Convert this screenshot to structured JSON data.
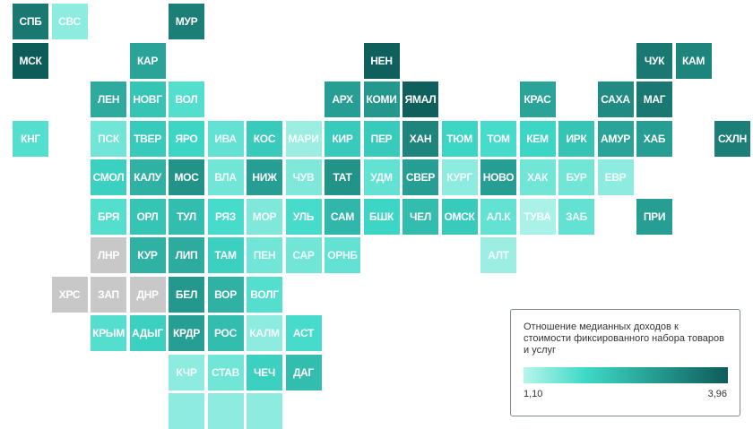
{
  "legend": {
    "title": "Отношение медианных доходов к стоимости фиксированного набора товаров и услуг",
    "min_label": "1,10",
    "max_label": "3,96",
    "min_value": 1.1,
    "max_value": 3.96,
    "color_low": "#b8f5ec",
    "color_mid": "#3ed9c7",
    "color_high": "#0e5c59",
    "no_data_color": "#c8c8c8"
  },
  "regions": [
    {
      "label": "СПБ",
      "col": 0,
      "row": 0,
      "value": 3.5
    },
    {
      "label": "СВС",
      "col": 1,
      "row": 0,
      "value": 1.4
    },
    {
      "label": "МУР",
      "col": 4,
      "row": 0,
      "value": 3.4
    },
    {
      "label": "МСК",
      "col": 0,
      "row": 1,
      "value": 3.96
    },
    {
      "label": "КАР",
      "col": 3,
      "row": 1,
      "value": 2.8
    },
    {
      "label": "НЕН",
      "col": 9,
      "row": 1,
      "value": 3.9
    },
    {
      "label": "ЧУК",
      "col": 16,
      "row": 1,
      "value": 3.5
    },
    {
      "label": "КАМ",
      "col": 17,
      "row": 1,
      "value": 3.3
    },
    {
      "label": "ЛЕН",
      "col": 2,
      "row": 2,
      "value": 2.7
    },
    {
      "label": "НОВГ",
      "col": 3,
      "row": 2,
      "value": 2.3
    },
    {
      "label": "ВОЛ",
      "col": 4,
      "row": 2,
      "value": 1.8
    },
    {
      "label": "АРХ",
      "col": 8,
      "row": 2,
      "value": 2.9
    },
    {
      "label": "КОМИ",
      "col": 9,
      "row": 2,
      "value": 3.0
    },
    {
      "label": "ЯМАЛ",
      "col": 10,
      "row": 2,
      "value": 3.9
    },
    {
      "label": "КРАС",
      "col": 13,
      "row": 2,
      "value": 2.8
    },
    {
      "label": "САХА",
      "col": 15,
      "row": 2,
      "value": 3.2
    },
    {
      "label": "МАГ",
      "col": 16,
      "row": 2,
      "value": 3.5
    },
    {
      "label": "КНГ",
      "col": 0,
      "row": 3,
      "value": 1.8
    },
    {
      "label": "ПСК",
      "col": 2,
      "row": 3,
      "value": 1.6
    },
    {
      "label": "ТВЕР",
      "col": 3,
      "row": 3,
      "value": 2.2
    },
    {
      "label": "ЯРО",
      "col": 4,
      "row": 3,
      "value": 2.0
    },
    {
      "label": "ИВА",
      "col": 5,
      "row": 3,
      "value": 1.7
    },
    {
      "label": "КОС",
      "col": 6,
      "row": 3,
      "value": 2.2
    },
    {
      "label": "МАРИ",
      "col": 7,
      "row": 3,
      "value": 1.3
    },
    {
      "label": "КИР",
      "col": 8,
      "row": 3,
      "value": 2.2
    },
    {
      "label": "ПЕР",
      "col": 9,
      "row": 3,
      "value": 2.2
    },
    {
      "label": "ХАН",
      "col": 10,
      "row": 3,
      "value": 3.3
    },
    {
      "label": "ТЮМ",
      "col": 11,
      "row": 3,
      "value": 2.0
    },
    {
      "label": "ТОМ",
      "col": 12,
      "row": 3,
      "value": 1.9
    },
    {
      "label": "КЕМ",
      "col": 13,
      "row": 3,
      "value": 2.0
    },
    {
      "label": "ИРК",
      "col": 14,
      "row": 3,
      "value": 2.3
    },
    {
      "label": "АМУР",
      "col": 15,
      "row": 3,
      "value": 2.8
    },
    {
      "label": "ХАБ",
      "col": 16,
      "row": 3,
      "value": 2.9
    },
    {
      "label": "СХЛН",
      "col": 18,
      "row": 3,
      "value": 3.4
    },
    {
      "label": "СМОЛ",
      "col": 2,
      "row": 4,
      "value": 2.1
    },
    {
      "label": "КАЛУ",
      "col": 3,
      "row": 4,
      "value": 2.6
    },
    {
      "label": "МОС",
      "col": 4,
      "row": 4,
      "value": 3.1
    },
    {
      "label": "ВЛА",
      "col": 5,
      "row": 4,
      "value": 1.6
    },
    {
      "label": "НИЖ",
      "col": 6,
      "row": 4,
      "value": 2.9
    },
    {
      "label": "ЧУВ",
      "col": 7,
      "row": 4,
      "value": 1.5
    },
    {
      "label": "ТАТ",
      "col": 8,
      "row": 4,
      "value": 3.1
    },
    {
      "label": "УДМ",
      "col": 9,
      "row": 4,
      "value": 1.7
    },
    {
      "label": "СВЕР",
      "col": 10,
      "row": 4,
      "value": 2.9
    },
    {
      "label": "КУРГ",
      "col": 11,
      "row": 4,
      "value": 1.4
    },
    {
      "label": "НОВО",
      "col": 12,
      "row": 4,
      "value": 2.9
    },
    {
      "label": "ХАК",
      "col": 13,
      "row": 4,
      "value": 1.6
    },
    {
      "label": "БУР",
      "col": 14,
      "row": 4,
      "value": 1.6
    },
    {
      "label": "ЕВР",
      "col": 15,
      "row": 4,
      "value": 1.4
    },
    {
      "label": "БРЯ",
      "col": 2,
      "row": 5,
      "value": 1.8
    },
    {
      "label": "ОРЛ",
      "col": 3,
      "row": 5,
      "value": 2.3
    },
    {
      "label": "ТУЛ",
      "col": 4,
      "row": 5,
      "value": 2.4
    },
    {
      "label": "РЯЗ",
      "col": 5,
      "row": 5,
      "value": 1.9
    },
    {
      "label": "МОР",
      "col": 6,
      "row": 5,
      "value": 1.5
    },
    {
      "label": "УЛЬ",
      "col": 7,
      "row": 5,
      "value": 1.9
    },
    {
      "label": "САМ",
      "col": 8,
      "row": 5,
      "value": 2.5
    },
    {
      "label": "БШК",
      "col": 9,
      "row": 5,
      "value": 2.0
    },
    {
      "label": "ЧЕЛ",
      "col": 10,
      "row": 5,
      "value": 2.4
    },
    {
      "label": "ОМСК",
      "col": 11,
      "row": 5,
      "value": 2.2
    },
    {
      "label": "АЛ.К",
      "col": 12,
      "row": 5,
      "value": 1.7
    },
    {
      "label": "ТУВА",
      "col": 13,
      "row": 5,
      "value": 1.2
    },
    {
      "label": "ЗАБ",
      "col": 14,
      "row": 5,
      "value": 1.7
    },
    {
      "label": "ПРИ",
      "col": 16,
      "row": 5,
      "value": 2.9
    },
    {
      "label": "ЛНР",
      "col": 2,
      "row": 6,
      "value": null
    },
    {
      "label": "КУР",
      "col": 3,
      "row": 6,
      "value": 2.6
    },
    {
      "label": "ЛИП",
      "col": 4,
      "row": 6,
      "value": 2.7
    },
    {
      "label": "ТАМ",
      "col": 5,
      "row": 6,
      "value": 2.1
    },
    {
      "label": "ПЕН",
      "col": 6,
      "row": 6,
      "value": 1.6
    },
    {
      "label": "САР",
      "col": 7,
      "row": 6,
      "value": 1.6
    },
    {
      "label": "ОРНБ",
      "col": 8,
      "row": 6,
      "value": 1.7
    },
    {
      "label": "АЛТ",
      "col": 12,
      "row": 6,
      "value": 1.3
    },
    {
      "label": "ХРС",
      "col": 1,
      "row": 7,
      "value": null
    },
    {
      "label": "ЗАП",
      "col": 2,
      "row": 7,
      "value": null
    },
    {
      "label": "ДНР",
      "col": 3,
      "row": 7,
      "value": null
    },
    {
      "label": "БЕЛ",
      "col": 4,
      "row": 7,
      "value": 3.0
    },
    {
      "label": "ВОР",
      "col": 5,
      "row": 7,
      "value": 2.6
    },
    {
      "label": "ВОЛГ",
      "col": 6,
      "row": 7,
      "value": 1.8
    },
    {
      "label": "КРЫМ",
      "col": 2,
      "row": 8,
      "value": 1.8
    },
    {
      "label": "АДЫГ",
      "col": 3,
      "row": 8,
      "value": 2.1
    },
    {
      "label": "КРДР",
      "col": 4,
      "row": 8,
      "value": 2.9
    },
    {
      "label": "РОС",
      "col": 5,
      "row": 8,
      "value": 2.4
    },
    {
      "label": "КАЛМ",
      "col": 6,
      "row": 8,
      "value": 1.4
    },
    {
      "label": "АСТ",
      "col": 7,
      "row": 8,
      "value": 1.9
    },
    {
      "label": "КЧР",
      "col": 4,
      "row": 9,
      "value": 1.4
    },
    {
      "label": "СТАВ",
      "col": 5,
      "row": 9,
      "value": 1.6
    },
    {
      "label": "ЧЕЧ",
      "col": 6,
      "row": 9,
      "value": 2.1
    },
    {
      "label": "ДАГ",
      "col": 7,
      "row": 9,
      "value": 2.4
    },
    {
      "label": "",
      "col": 4,
      "row": 10,
      "value": 1.4
    },
    {
      "label": "",
      "col": 5,
      "row": 10,
      "value": 1.4
    },
    {
      "label": "",
      "col": 6,
      "row": 10,
      "value": 1.4
    }
  ]
}
